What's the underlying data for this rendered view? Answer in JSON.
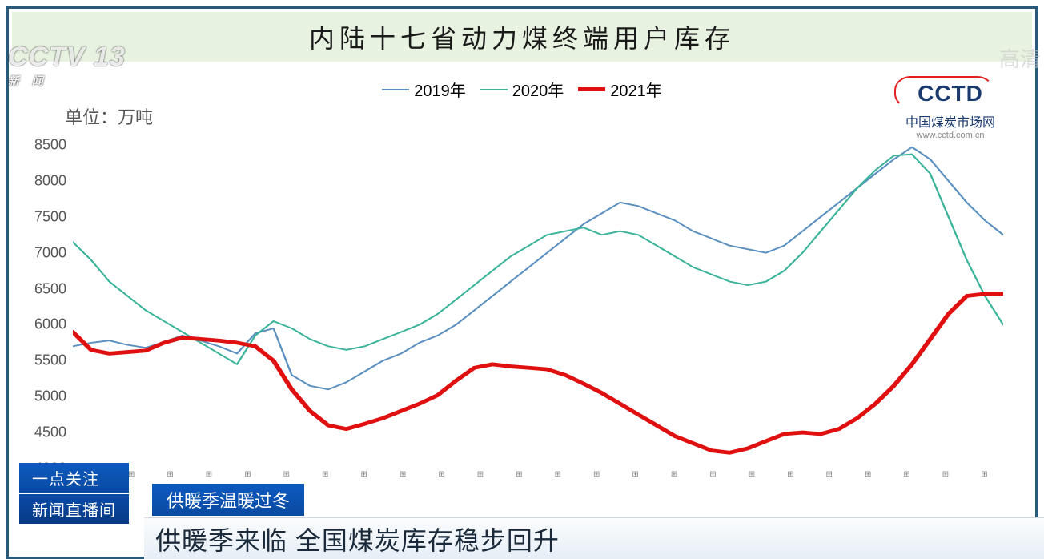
{
  "chart": {
    "type": "line",
    "title": "内陆十七省动力煤终端用户库存",
    "unit_label": "单位：万吨",
    "legend": [
      {
        "label": "2019年",
        "color": "#5a8fbf",
        "width": 2
      },
      {
        "label": "2020年",
        "color": "#3bb39a",
        "width": 2
      },
      {
        "label": "2021年",
        "color": "#e01010",
        "width": 5
      }
    ],
    "ylim": [
      4000,
      8500
    ],
    "ytick_step": 500,
    "yticks": [
      4000,
      4500,
      5000,
      5500,
      6000,
      6500,
      7000,
      7500,
      8000,
      8500
    ],
    "background_color": "#ffffff",
    "title_band_color": "#e8f2e0",
    "title_fontsize": 32,
    "label_fontsize": 20,
    "axis_text_color": "#555555",
    "n_points": 52,
    "series": {
      "2019": [
        5700,
        5750,
        5780,
        5720,
        5680,
        5760,
        5850,
        5780,
        5700,
        5600,
        5880,
        5950,
        5300,
        5150,
        5100,
        5200,
        5350,
        5500,
        5600,
        5750,
        5850,
        6000,
        6200,
        6400,
        6600,
        6800,
        7000,
        7200,
        7400,
        7550,
        7700,
        7650,
        7550,
        7450,
        7300,
        7200,
        7100,
        7050,
        7000,
        7100,
        7300,
        7500,
        7700,
        7900,
        8100,
        8300,
        8470,
        8300,
        8000,
        7700,
        7450,
        7250
      ],
      "2020": [
        7150,
        6900,
        6600,
        6400,
        6200,
        6050,
        5900,
        5750,
        5600,
        5450,
        5850,
        6050,
        5950,
        5800,
        5700,
        5650,
        5700,
        5800,
        5900,
        6000,
        6150,
        6350,
        6550,
        6750,
        6950,
        7100,
        7250,
        7300,
        7350,
        7250,
        7300,
        7250,
        7100,
        6950,
        6800,
        6700,
        6600,
        6550,
        6600,
        6750,
        7000,
        7300,
        7600,
        7900,
        8150,
        8350,
        8370,
        8100,
        7500,
        6900,
        6400,
        6000
      ],
      "2021": [
        5900,
        5650,
        5600,
        5620,
        5640,
        5750,
        5820,
        5800,
        5780,
        5750,
        5700,
        5500,
        5100,
        4800,
        4600,
        4550,
        4620,
        4700,
        4800,
        4900,
        5020,
        5220,
        5400,
        5450,
        5420,
        5400,
        5380,
        5300,
        5180,
        5050,
        4900,
        4750,
        4600,
        4450,
        4350,
        4250,
        4220,
        4280,
        4380,
        4480,
        4500,
        4480,
        4550,
        4700,
        4900,
        5150,
        5450,
        5800,
        6150,
        6400,
        6430,
        6430
      ]
    }
  },
  "logo": {
    "text": "CCTD",
    "subtitle": "中国煤炭市场网",
    "url": "www.cctd.com.cn",
    "text_color": "#1a3a6e",
    "ring_color": "#e02020"
  },
  "broadcast": {
    "channel_watermark": "CCTV 13",
    "channel_sub": "新 闻",
    "hd_watermark": "高清",
    "tag_focus": "一点关注",
    "program_name": "新闻直播间",
    "banner_topic": "供暖季温暖过冬",
    "headline": "供暖季来临 全国煤炭库存稳步回升",
    "tag_bg": "#0a4aa8",
    "headline_bg": "#eef3f9",
    "headline_color": "#1a2a3a"
  }
}
